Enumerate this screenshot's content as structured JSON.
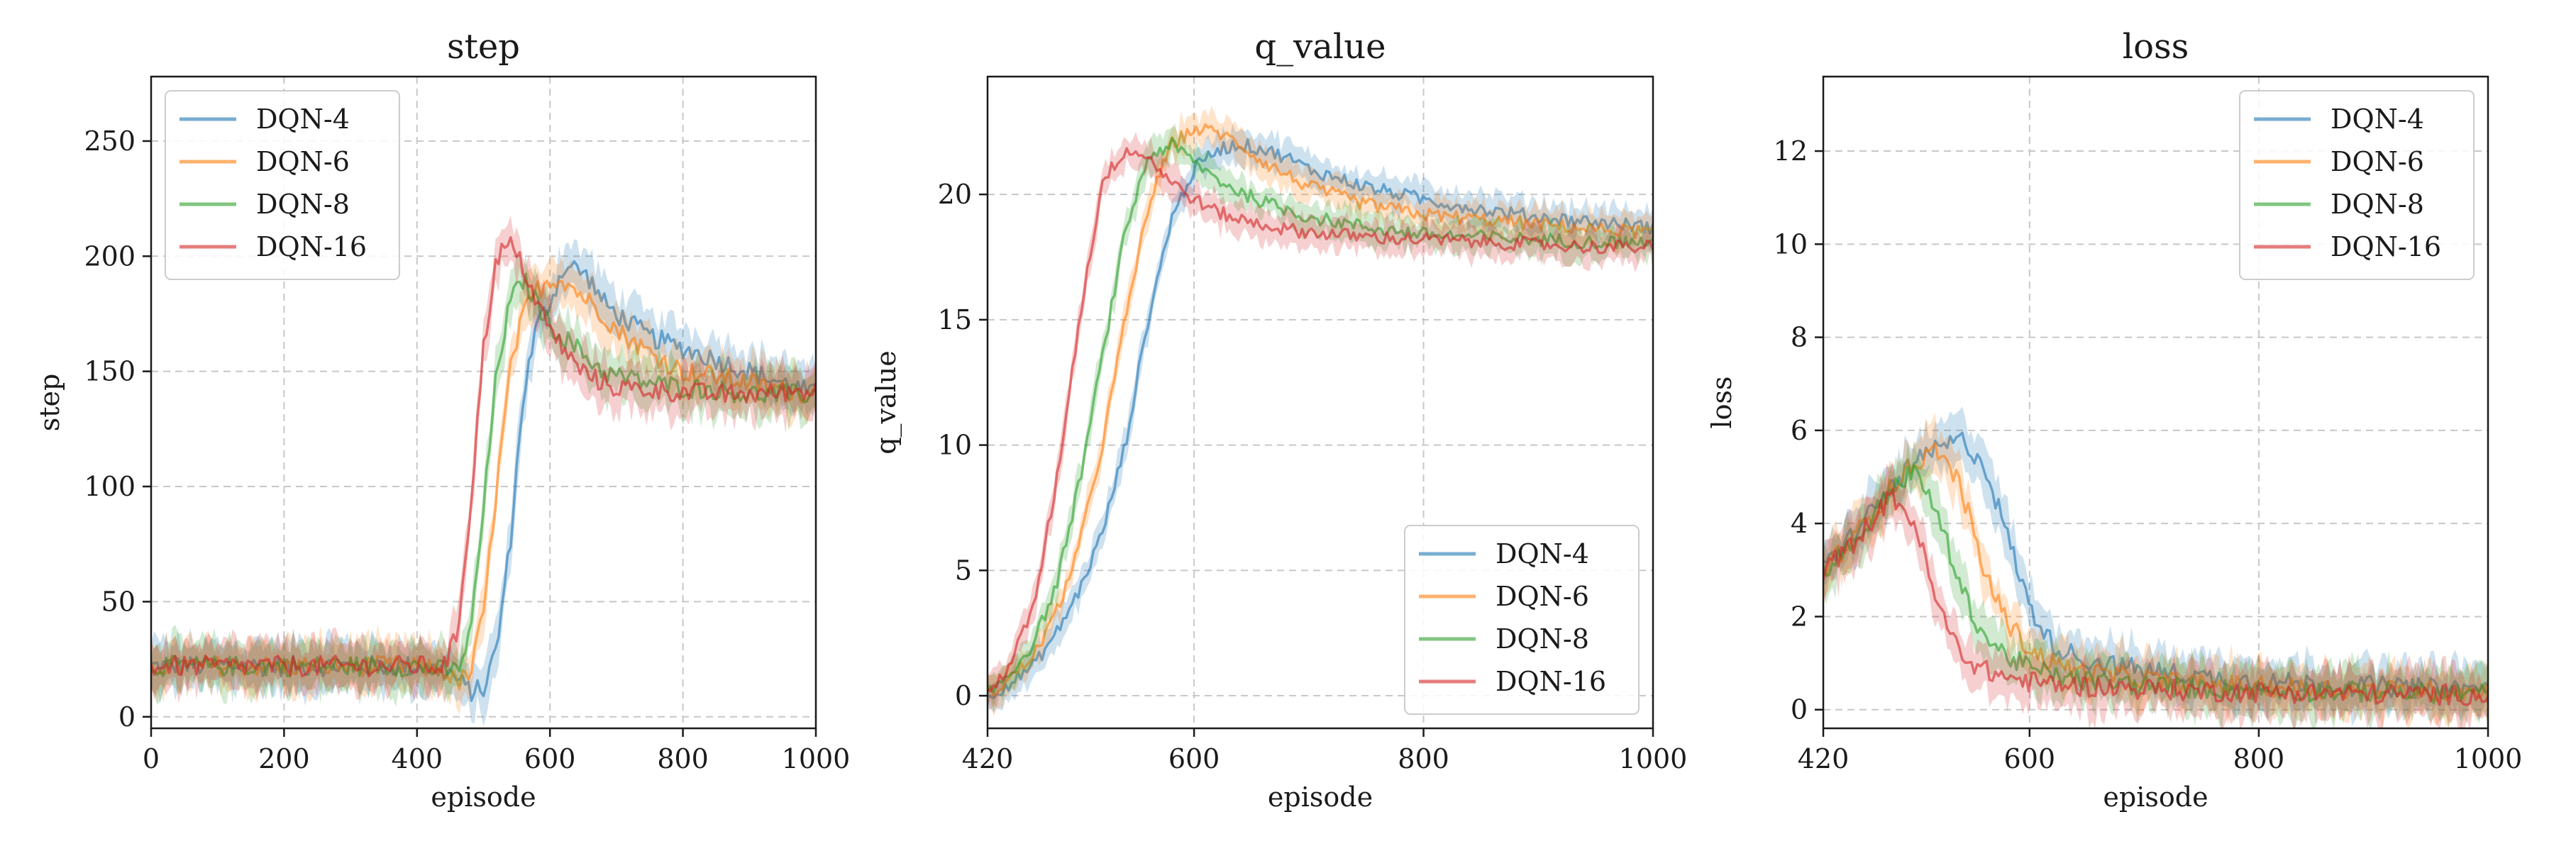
{
  "colors": {
    "DQN-4": "#1f77b4",
    "DQN-6": "#ff7f0e",
    "DQN-8": "#2ca02c",
    "DQN-16": "#d62728"
  },
  "chart_data": [
    {
      "type": "line",
      "title": "step",
      "xlabel": "episode",
      "ylabel": "step",
      "xlim": [
        0,
        1000
      ],
      "ylim": [
        -5,
        278
      ],
      "xticks": [
        0,
        200,
        400,
        600,
        800,
        1000
      ],
      "yticks": [
        0,
        50,
        100,
        150,
        200,
        250
      ],
      "grid": true,
      "legend_loc": "upper-left",
      "series": [
        {
          "name": "DQN-4",
          "band": 10,
          "x": [
            0,
            100,
            200,
            300,
            400,
            450,
            480,
            500,
            520,
            540,
            560,
            580,
            600,
            620,
            640,
            660,
            680,
            700,
            750,
            800,
            850,
            900,
            950,
            1000
          ],
          "y": [
            22,
            22,
            22,
            22,
            22,
            19,
            11,
            12,
            30,
            75,
            140,
            170,
            180,
            195,
            195,
            190,
            180,
            175,
            165,
            160,
            155,
            150,
            145,
            140
          ]
        },
        {
          "name": "DQN-6",
          "band": 10,
          "x": [
            0,
            100,
            200,
            300,
            400,
            440,
            460,
            480,
            500,
            520,
            540,
            560,
            580,
            600,
            620,
            640,
            660,
            680,
            700,
            750,
            800,
            850,
            900,
            950,
            1000
          ],
          "y": [
            22,
            22,
            22,
            22,
            22,
            20,
            15,
            18,
            45,
            100,
            150,
            175,
            185,
            190,
            190,
            185,
            180,
            175,
            168,
            158,
            150,
            148,
            145,
            142,
            140
          ]
        },
        {
          "name": "DQN-8",
          "band": 10,
          "x": [
            0,
            100,
            200,
            300,
            400,
            440,
            460,
            480,
            500,
            520,
            540,
            560,
            580,
            600,
            620,
            640,
            660,
            680,
            700,
            750,
            800,
            850,
            900,
            950,
            1000
          ],
          "y": [
            22,
            22,
            22,
            22,
            22,
            20,
            20,
            35,
            90,
            150,
            180,
            190,
            180,
            170,
            165,
            160,
            155,
            150,
            148,
            145,
            143,
            142,
            140,
            140,
            140
          ]
        },
        {
          "name": "DQN-16",
          "band": 10,
          "x": [
            0,
            100,
            200,
            300,
            400,
            440,
            460,
            480,
            500,
            520,
            540,
            560,
            580,
            600,
            620,
            640,
            660,
            680,
            700,
            750,
            800,
            850,
            900,
            950,
            1000
          ],
          "y": [
            22,
            22,
            22,
            22,
            22,
            22,
            35,
            90,
            160,
            200,
            205,
            195,
            180,
            168,
            160,
            152,
            148,
            145,
            143,
            142,
            141,
            140,
            140,
            141,
            142
          ]
        }
      ]
    },
    {
      "type": "line",
      "title": "q_value",
      "xlabel": "episode",
      "ylabel": "q_value",
      "xlim": [
        420,
        1000
      ],
      "ylim": [
        -1.3,
        24.7
      ],
      "xticks": [
        420,
        600,
        800,
        1000
      ],
      "yticks": [
        0,
        5,
        10,
        15,
        20
      ],
      "grid": true,
      "legend_loc": "lower-right",
      "series": [
        {
          "name": "DQN-4",
          "band": 0.6,
          "x": [
            420,
            440,
            460,
            480,
            500,
            520,
            540,
            560,
            580,
            600,
            620,
            640,
            660,
            680,
            700,
            750,
            800,
            850,
            900,
            950,
            1000
          ],
          "y": [
            0,
            0.5,
            1.2,
            2.5,
            4.2,
            6.5,
            10,
            15,
            19,
            21,
            21.8,
            22,
            21.8,
            21.5,
            21,
            20.3,
            19.8,
            19.4,
            19.1,
            18.9,
            18.7
          ]
        },
        {
          "name": "DQN-6",
          "band": 0.6,
          "x": [
            420,
            440,
            460,
            480,
            500,
            520,
            540,
            560,
            580,
            600,
            620,
            640,
            660,
            680,
            700,
            750,
            800,
            850,
            900,
            950,
            1000
          ],
          "y": [
            0,
            0.7,
            1.6,
            3.3,
            6,
            10,
            15,
            19.5,
            22,
            22.6,
            22.5,
            22,
            21.3,
            20.8,
            20.3,
            19.6,
            19.2,
            19,
            18.8,
            18.6,
            18.5
          ]
        },
        {
          "name": "DQN-8",
          "band": 0.6,
          "x": [
            420,
            440,
            460,
            480,
            500,
            520,
            540,
            560,
            580,
            600,
            620,
            640,
            660,
            680,
            700,
            750,
            800,
            850,
            900,
            950,
            1000
          ],
          "y": [
            0,
            0.9,
            2.1,
            4.4,
            8.5,
            13.5,
            18.5,
            21.5,
            22,
            21.3,
            20.6,
            20.1,
            19.7,
            19.4,
            19.1,
            18.7,
            18.4,
            18.3,
            18.2,
            18.1,
            18.1
          ]
        },
        {
          "name": "DQN-16",
          "band": 0.6,
          "x": [
            420,
            440,
            460,
            480,
            500,
            520,
            540,
            560,
            580,
            600,
            620,
            640,
            660,
            680,
            700,
            750,
            800,
            850,
            900,
            950,
            1000
          ],
          "y": [
            0,
            1.3,
            3.5,
            8.5,
            15,
            20.5,
            21.8,
            21.5,
            20.5,
            19.8,
            19.3,
            19,
            18.8,
            18.6,
            18.5,
            18.3,
            18.2,
            18.1,
            18,
            17.9,
            17.9
          ]
        }
      ]
    },
    {
      "type": "line",
      "title": "loss",
      "xlabel": "episode",
      "ylabel": "loss",
      "xlim": [
        420,
        1000
      ],
      "ylim": [
        -0.4,
        13.6
      ],
      "xticks": [
        420,
        600,
        800,
        1000
      ],
      "yticks": [
        0,
        2,
        4,
        6,
        8,
        10,
        12
      ],
      "grid": true,
      "legend_loc": "upper-right",
      "series": [
        {
          "name": "DQN-4",
          "band": 0.5,
          "x": [
            420,
            440,
            460,
            480,
            500,
            520,
            540,
            560,
            580,
            600,
            620,
            650,
            700,
            750,
            800,
            850,
            900,
            950,
            1000
          ],
          "y": [
            3,
            3.6,
            4.2,
            4.8,
            5.3,
            5.6,
            5.8,
            5.3,
            3.8,
            2.2,
            1.4,
            1.05,
            0.85,
            0.7,
            0.6,
            0.55,
            0.5,
            0.45,
            0.45
          ]
        },
        {
          "name": "DQN-6",
          "band": 0.5,
          "x": [
            420,
            440,
            460,
            480,
            500,
            520,
            540,
            560,
            580,
            600,
            620,
            650,
            700,
            750,
            800,
            850,
            900,
            950,
            1000
          ],
          "y": [
            3,
            3.5,
            4.1,
            4.8,
            5.3,
            5.6,
            4.8,
            3,
            1.9,
            1.3,
            1,
            0.8,
            0.65,
            0.55,
            0.5,
            0.45,
            0.42,
            0.4,
            0.38
          ]
        },
        {
          "name": "DQN-8",
          "band": 0.5,
          "x": [
            420,
            440,
            460,
            480,
            500,
            520,
            540,
            560,
            580,
            600,
            620,
            650,
            700,
            750,
            800,
            850,
            900,
            950,
            1000
          ],
          "y": [
            3,
            3.4,
            4,
            4.8,
            5.1,
            4.2,
            2.6,
            1.6,
            1.15,
            0.9,
            0.75,
            0.62,
            0.52,
            0.46,
            0.42,
            0.4,
            0.38,
            0.36,
            0.35
          ]
        },
        {
          "name": "DQN-16",
          "band": 0.5,
          "x": [
            420,
            440,
            460,
            480,
            500,
            520,
            540,
            560,
            580,
            600,
            620,
            650,
            700,
            750,
            800,
            850,
            900,
            950,
            1000
          ],
          "y": [
            3,
            3.4,
            4,
            4.6,
            4,
            2.2,
            1.2,
            0.85,
            0.7,
            0.6,
            0.55,
            0.5,
            0.45,
            0.4,
            0.38,
            0.36,
            0.34,
            0.33,
            0.32
          ]
        }
      ]
    }
  ]
}
